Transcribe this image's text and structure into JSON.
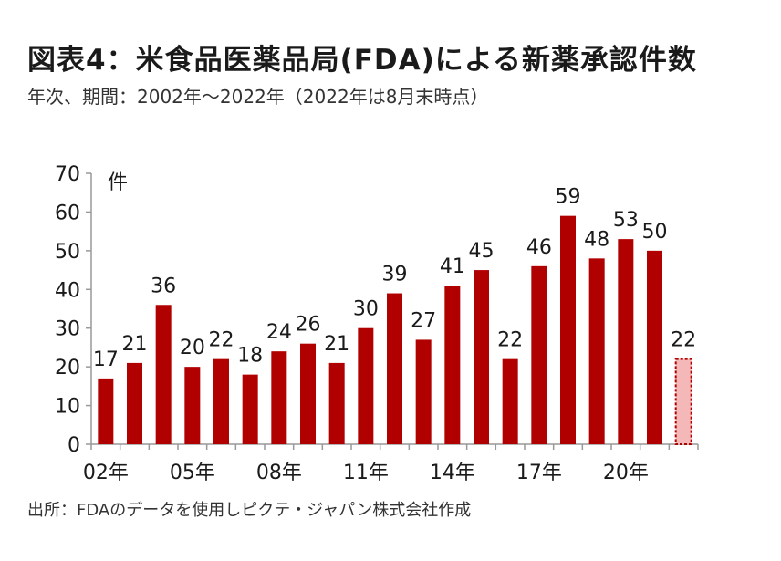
{
  "header": {
    "title": "図表4：米食品医薬品局(FDA)による新薬承認件数",
    "subtitle": "年次、期間：2002年～2022年（2022年は8月末時点）"
  },
  "footer": {
    "source": "出所：FDAのデータを使用しピクテ・ジャパン株式会社作成"
  },
  "colors": {
    "bar": "#b00000",
    "partial_fill": "#f4b8b8",
    "partial_stroke": "#b00000"
  },
  "chart_data": {
    "type": "bar",
    "years": [
      2002,
      2003,
      2004,
      2005,
      2006,
      2007,
      2008,
      2009,
      2010,
      2011,
      2012,
      2013,
      2014,
      2015,
      2016,
      2017,
      2018,
      2019,
      2020,
      2021,
      2022
    ],
    "values": [
      17,
      21,
      36,
      20,
      22,
      18,
      24,
      26,
      21,
      30,
      39,
      27,
      41,
      45,
      22,
      46,
      59,
      48,
      53,
      50,
      22
    ],
    "partial_last": true,
    "x_tick_labels": [
      {
        "index": 0,
        "label": "02年"
      },
      {
        "index": 3,
        "label": "05年"
      },
      {
        "index": 6,
        "label": "08年"
      },
      {
        "index": 9,
        "label": "11年"
      },
      {
        "index": 12,
        "label": "14年"
      },
      {
        "index": 15,
        "label": "17年"
      },
      {
        "index": 18,
        "label": "20年"
      }
    ],
    "y_ticks": [
      0,
      10,
      20,
      30,
      40,
      50,
      60,
      70
    ],
    "ylim": [
      0,
      70
    ],
    "ylabel": "件",
    "data_labels": true,
    "grid": false,
    "legend": "none"
  }
}
